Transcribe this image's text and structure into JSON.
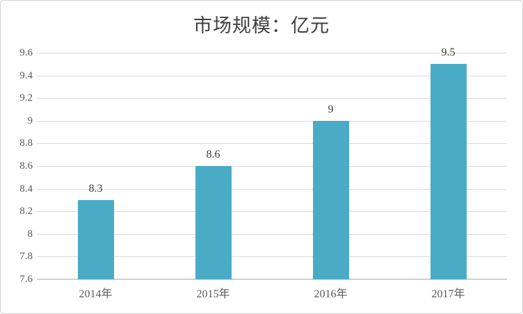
{
  "chart_data": {
    "type": "bar",
    "title": "市场规模：亿元",
    "categories": [
      "2014年",
      "2015年",
      "2016年",
      "2017年"
    ],
    "values": [
      8.3,
      8.6,
      9,
      9.5
    ],
    "value_labels": [
      "8.3",
      "8.6",
      "9",
      "9.5"
    ],
    "xlabel": "",
    "ylabel": "",
    "y_axis": {
      "min": 7.6,
      "max": 9.6,
      "step": 0.2,
      "tick_labels": [
        "9.6",
        "9.4",
        "9.2",
        "9",
        "8.8",
        "8.6",
        "8.4",
        "8.2",
        "8",
        "7.8",
        "7.6"
      ]
    },
    "grid": true,
    "legend": "none",
    "colors": {
      "bar": "#4aabc6",
      "gridline": "#d9d9d9",
      "axis_line": "#cfcfcf",
      "title_text": "#3f3f3f",
      "tick_text": "#595959",
      "value_label_text": "#3c3c3c",
      "border": "#d0d0d0",
      "background": "#ffffff"
    }
  }
}
